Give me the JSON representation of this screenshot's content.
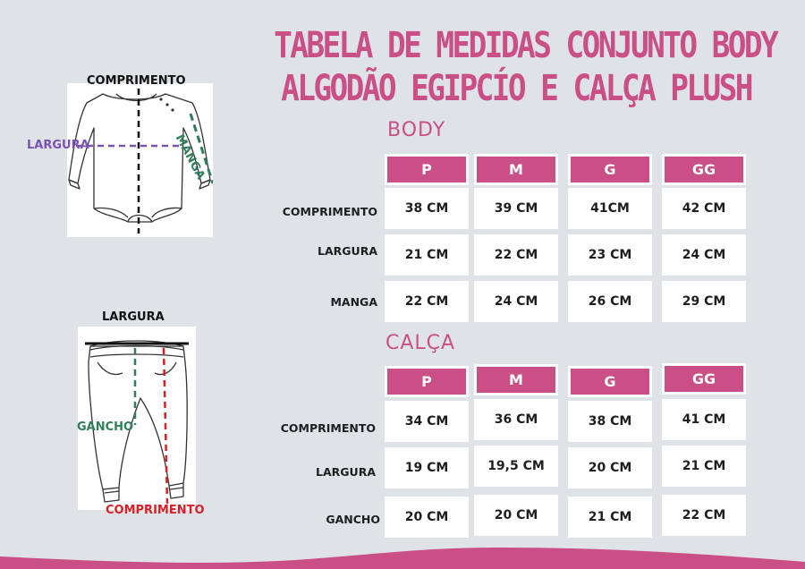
{
  "title": {
    "line1": "TABELA DE MEDIDAS CONJUNTO BODY",
    "line2": "ALGODÃO EGIPCÍO E CALÇA PLUSH"
  },
  "colors": {
    "accent": "#c94f86",
    "background": "#dfe3e8",
    "largura_body": "#7b52b3",
    "manga": "#2f7d5b",
    "gancho": "#2f7d5b",
    "comprimento_calca": "#d61f26"
  },
  "body_illustration": {
    "comprimento": "COMPRIMENTO",
    "largura": "LARGURA",
    "manga": "MANGA"
  },
  "calca_illustration": {
    "largura": "LARGURA",
    "gancho": "GANCHO",
    "comprimento": "COMPRIMENTO"
  },
  "body_table": {
    "title": "BODY",
    "sizes": [
      "P",
      "M",
      "G",
      "GG"
    ],
    "rows": [
      {
        "label": "COMPRIMENTO",
        "values": [
          "38 CM",
          "39 CM",
          "41CM",
          "42 CM"
        ]
      },
      {
        "label": "LARGURA",
        "values": [
          "21 CM",
          "22 CM",
          "23 CM",
          "24 CM"
        ]
      },
      {
        "label": "MANGA",
        "values": [
          "22 CM",
          "24 CM",
          "26 CM",
          "29 CM"
        ]
      }
    ]
  },
  "calca_table": {
    "title": "CALÇA",
    "sizes": [
      "P",
      "M",
      "G",
      "GG"
    ],
    "rows": [
      {
        "label": "COMPRIMENTO",
        "values": [
          "34 CM",
          "36 CM",
          "38 CM",
          "41 CM"
        ]
      },
      {
        "label": "LARGURA",
        "values": [
          "19 CM",
          "19,5 CM",
          "20 CM",
          "21 CM"
        ]
      },
      {
        "label": "GANCHO",
        "values": [
          "20 CM",
          "20 CM",
          "21 CM",
          "22 CM"
        ]
      }
    ]
  }
}
